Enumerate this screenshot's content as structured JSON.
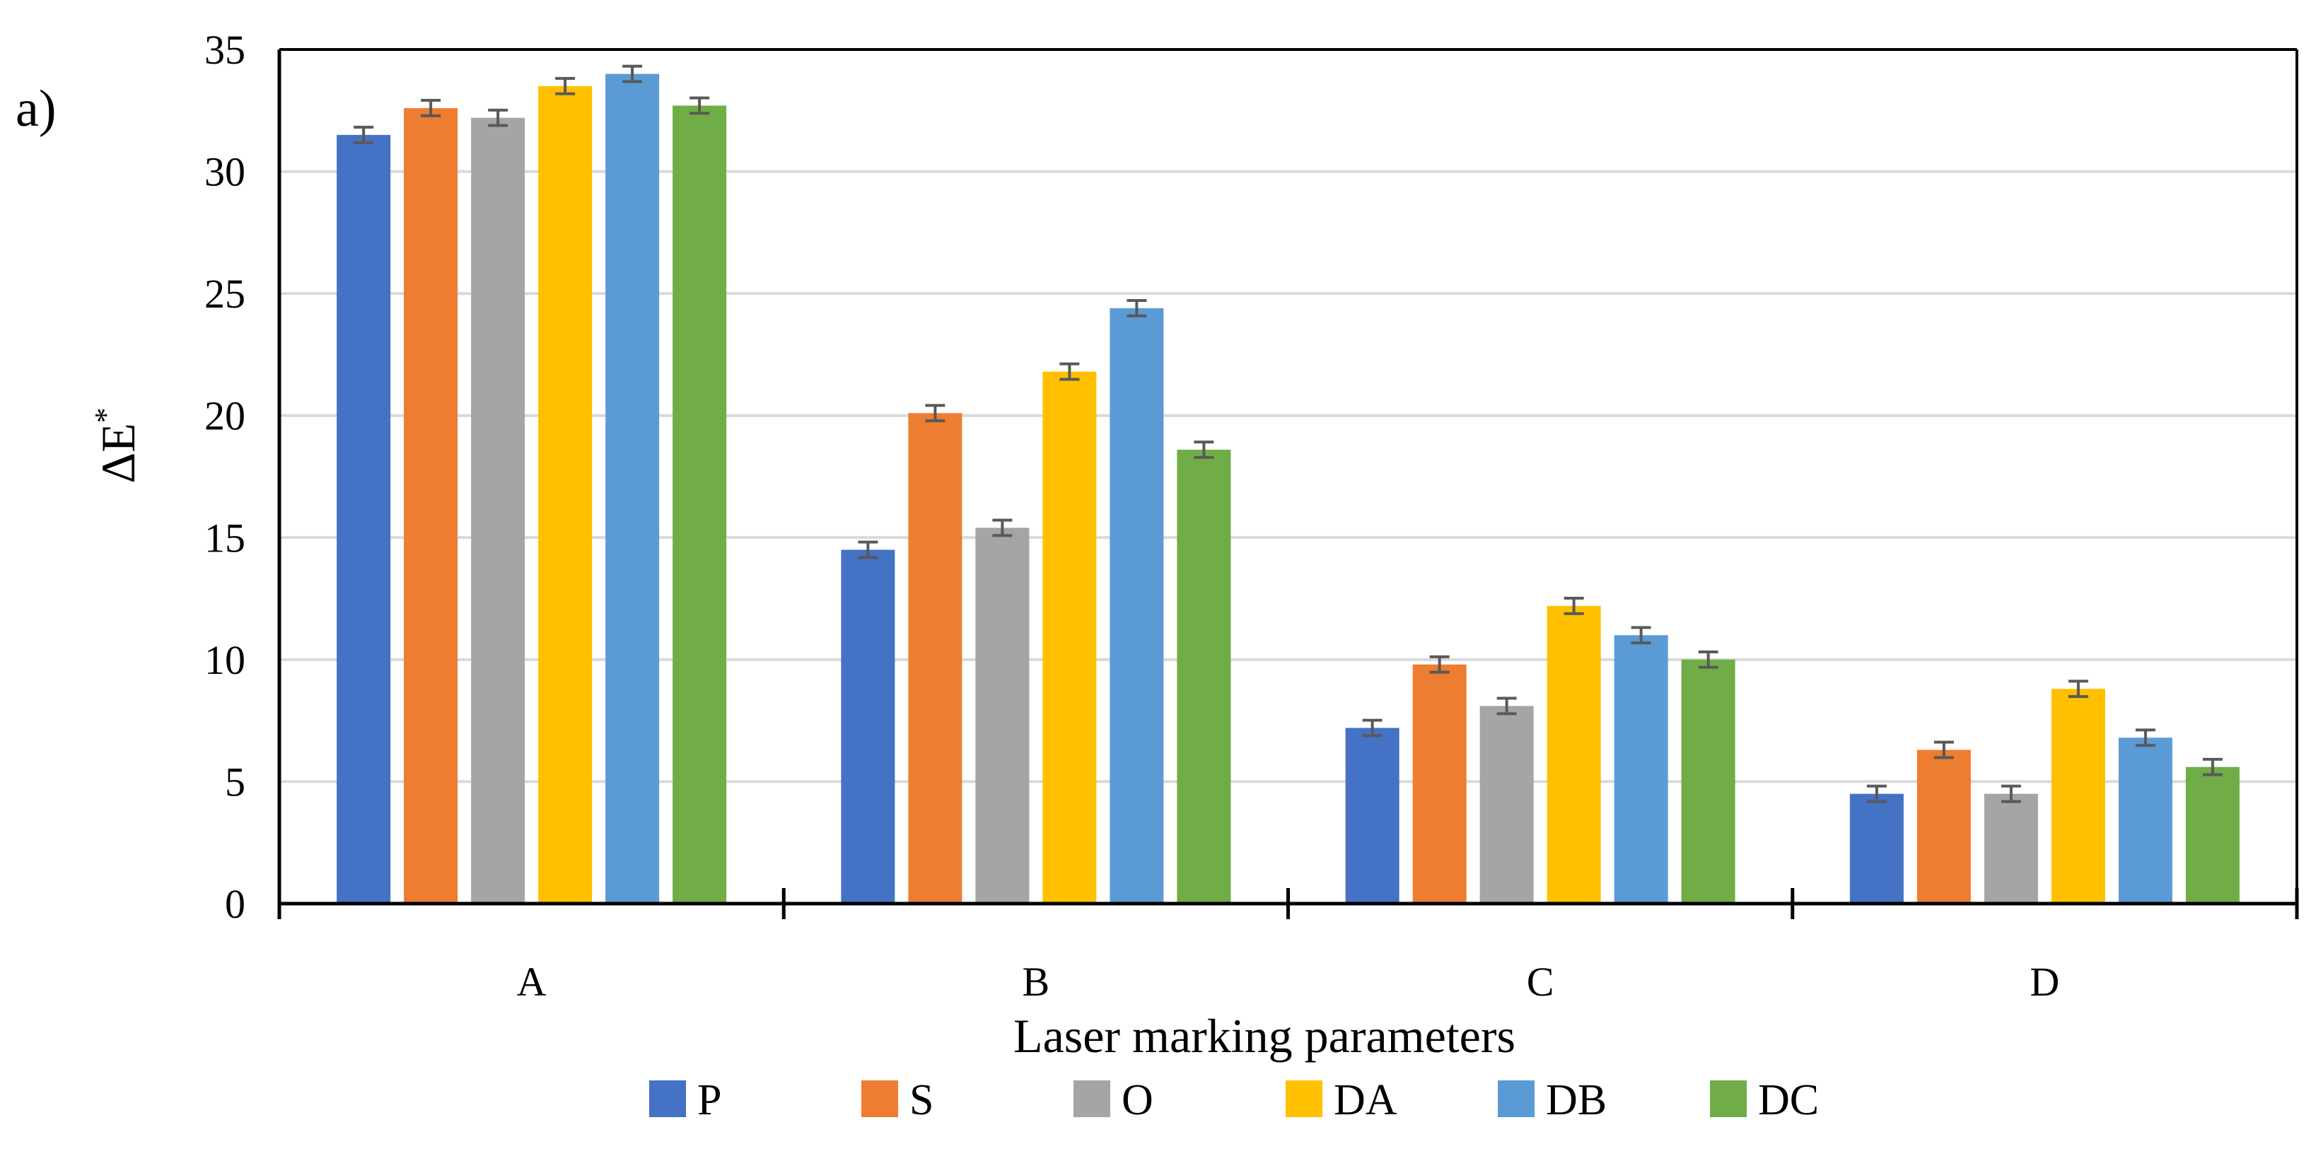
{
  "panel_label": "a)",
  "chart_data": {
    "type": "bar",
    "title": "",
    "xlabel": "Laser marking parameters",
    "ylabel_symbol": "ΔE",
    "ylabel_superscript": "*",
    "ylim": [
      0,
      35
    ],
    "yticks": [
      0,
      5,
      10,
      15,
      20,
      25,
      30,
      35
    ],
    "grid": true,
    "legend_position": "bottom",
    "categories": [
      "A",
      "B",
      "C",
      "D"
    ],
    "series": [
      {
        "name": "P",
        "color": "#4472C4",
        "values": [
          31.5,
          14.5,
          7.2,
          4.5
        ],
        "errors": [
          0.2,
          0.2,
          0.2,
          0.2
        ]
      },
      {
        "name": "S",
        "color": "#ED7D31",
        "values": [
          32.6,
          20.1,
          9.8,
          6.3
        ],
        "errors": [
          0.2,
          0.2,
          0.2,
          0.2
        ]
      },
      {
        "name": "O",
        "color": "#A5A5A5",
        "values": [
          32.2,
          15.4,
          8.1,
          4.5
        ],
        "errors": [
          0.2,
          0.2,
          0.2,
          0.2
        ]
      },
      {
        "name": "DA",
        "color": "#FFC000",
        "values": [
          33.5,
          21.8,
          12.2,
          8.8
        ],
        "errors": [
          0.2,
          0.2,
          0.2,
          0.2
        ]
      },
      {
        "name": "DB",
        "color": "#5B9BD5",
        "values": [
          34.0,
          24.4,
          11.0,
          6.8
        ],
        "errors": [
          0.2,
          0.2,
          0.2,
          0.2
        ]
      },
      {
        "name": "DC",
        "color": "#70AD47",
        "values": [
          32.7,
          18.6,
          10.0,
          5.6
        ],
        "errors": [
          0.2,
          0.2,
          0.2,
          0.2
        ]
      }
    ]
  },
  "colors": {
    "gridline": "#D9D9D9",
    "axis": "#000000",
    "errorbar": "#595959"
  }
}
